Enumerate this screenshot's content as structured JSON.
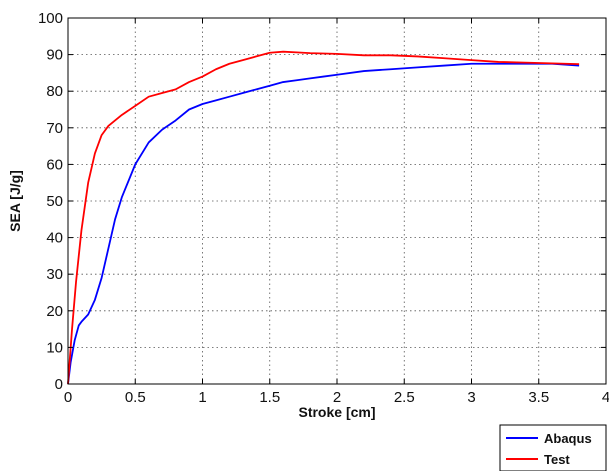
{
  "chart_data": {
    "type": "line",
    "title": "",
    "xlabel": "Stroke [cm]",
    "ylabel": "SEA [J/g]",
    "xlim": [
      0,
      4
    ],
    "ylim": [
      0,
      100
    ],
    "xticks": [
      "0",
      "0.5",
      "1",
      "1.5",
      "2",
      "2.5",
      "3",
      "3.5",
      "4"
    ],
    "yticks": [
      "0",
      "10",
      "20",
      "30",
      "40",
      "50",
      "60",
      "70",
      "80",
      "90",
      "100"
    ],
    "grid": true,
    "legend_position": "bottom-right (outside plot)",
    "series": [
      {
        "name": "Abaqus",
        "color": "#0000ff",
        "x": [
          0,
          0.02,
          0.05,
          0.08,
          0.1,
          0.15,
          0.2,
          0.25,
          0.3,
          0.35,
          0.4,
          0.5,
          0.6,
          0.7,
          0.8,
          0.9,
          1.0,
          1.1,
          1.2,
          1.3,
          1.4,
          1.5,
          1.6,
          1.7,
          1.8,
          1.9,
          2.0,
          2.2,
          2.4,
          2.6,
          2.8,
          3.0,
          3.2,
          3.4,
          3.6,
          3.8
        ],
        "y": [
          0,
          6,
          12,
          16,
          17,
          19,
          23,
          29,
          37,
          45,
          51,
          60,
          66,
          69.5,
          72,
          75,
          76.5,
          77.5,
          78.5,
          79.5,
          80.5,
          81.5,
          82.5,
          83,
          83.5,
          84,
          84.5,
          85.5,
          86,
          86.5,
          87,
          87.5,
          87.5,
          87.5,
          87.5,
          87
        ]
      },
      {
        "name": "Test",
        "color": "#ff0000",
        "x": [
          0,
          0.03,
          0.06,
          0.1,
          0.15,
          0.2,
          0.25,
          0.3,
          0.35,
          0.4,
          0.5,
          0.6,
          0.7,
          0.8,
          0.9,
          1.0,
          1.1,
          1.2,
          1.3,
          1.4,
          1.5,
          1.6,
          1.7,
          1.8,
          1.9,
          2.0,
          2.2,
          2.4,
          2.6,
          2.8,
          3.0,
          3.2,
          3.4,
          3.6,
          3.8
        ],
        "y": [
          0,
          15,
          28,
          42,
          55,
          63,
          68,
          70.5,
          72,
          73.5,
          76,
          78.5,
          79.5,
          80.5,
          82.5,
          84,
          86,
          87.5,
          88.5,
          89.5,
          90.5,
          90.8,
          90.6,
          90.4,
          90.3,
          90.2,
          89.8,
          89.8,
          89.5,
          89,
          88.5,
          88,
          87.8,
          87.6,
          87.4
        ]
      }
    ]
  }
}
